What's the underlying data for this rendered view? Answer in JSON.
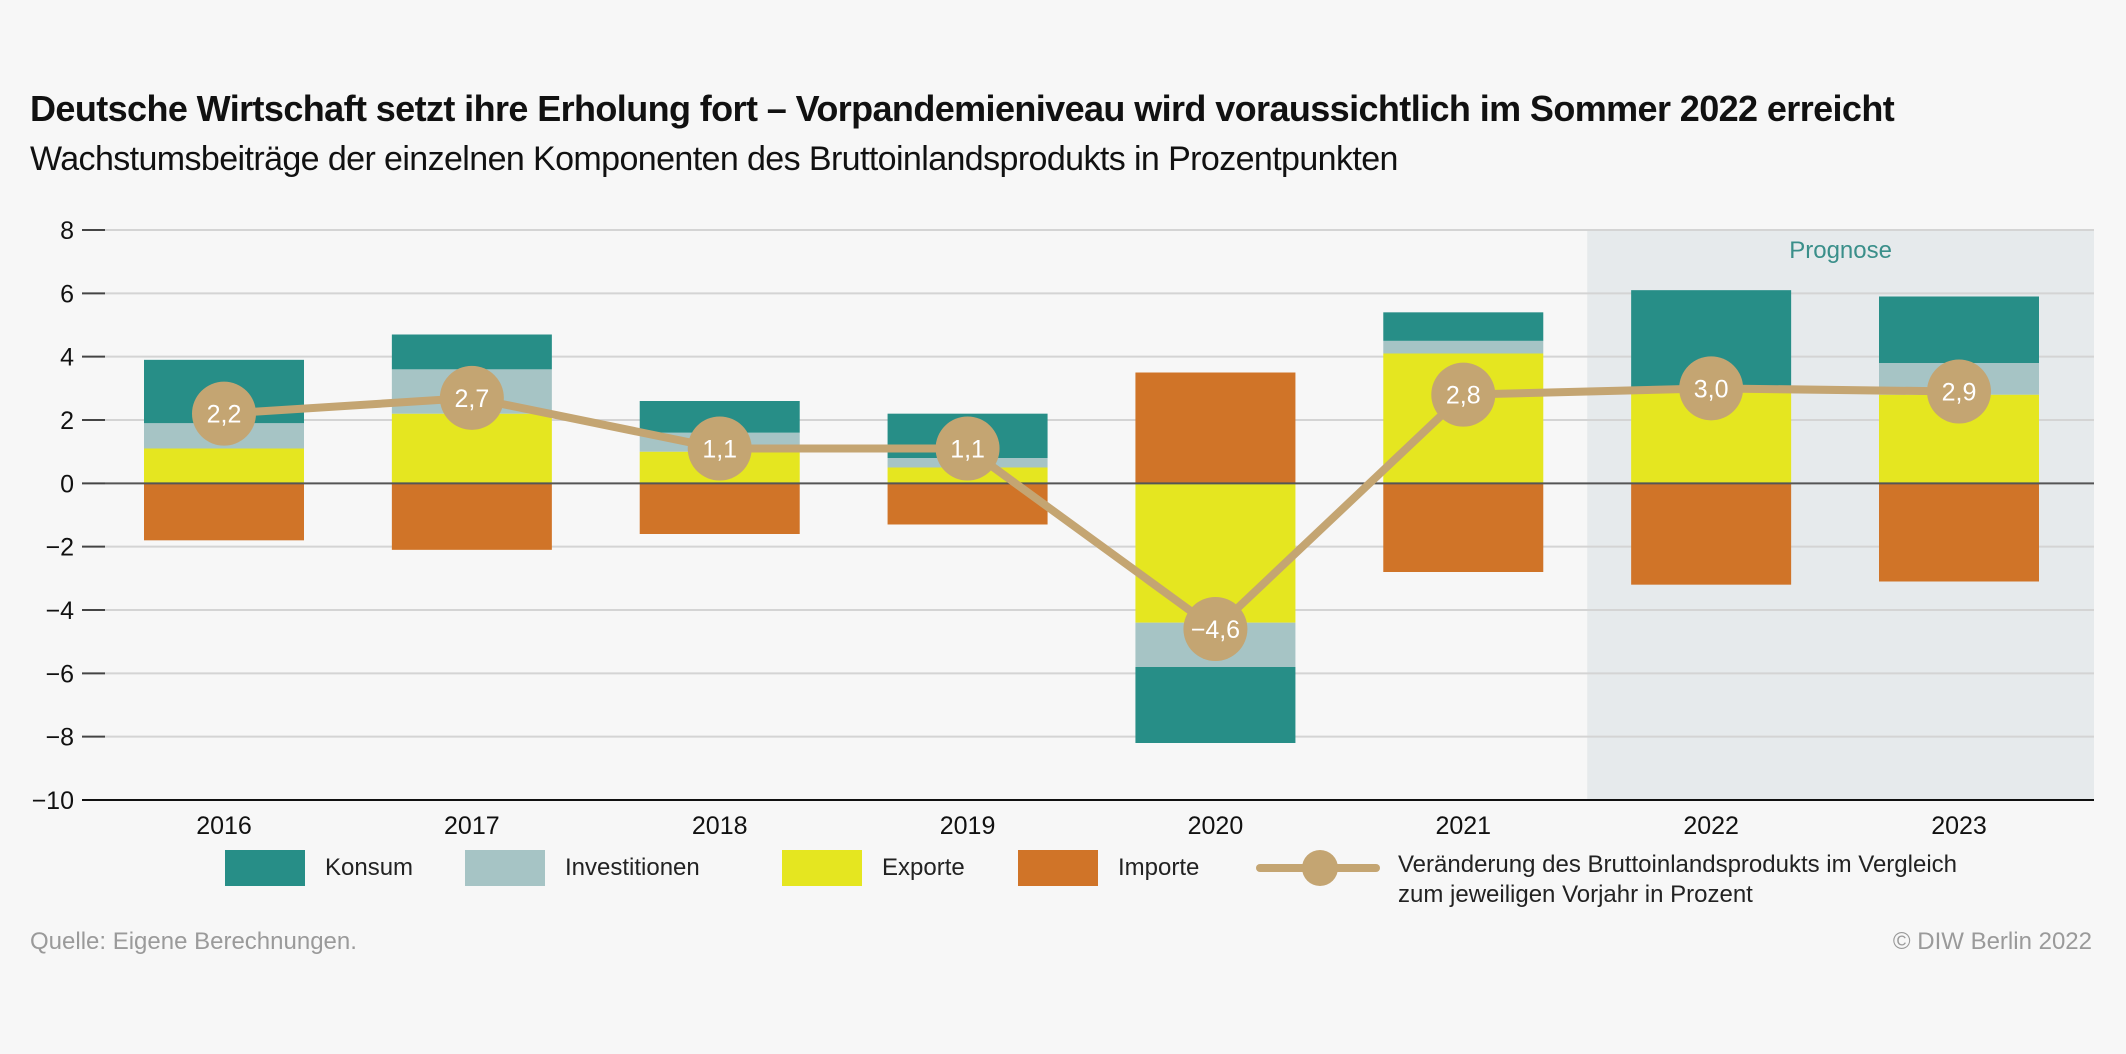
{
  "header": {
    "title": "Deutsche Wirtschaft setzt ihre Erholung fort – Vorpandemieniveau wird voraussichtlich im Sommer 2022 erreicht",
    "subtitle": "Wachstumsbeiträge der einzelnen Komponenten des Bruttoinlandsprodukts in Prozentpunkten"
  },
  "colors": {
    "konsum": "#278e87",
    "investitionen": "#a6c4c5",
    "exporte": "#e5e620",
    "importe": "#d07428",
    "gdp_line": "#c4a572",
    "forecast_bg": "#e6eaec",
    "forecast_label": "#3a8f8a"
  },
  "chart_data": {
    "type": "bar",
    "stacked": true,
    "title": "Deutsche Wirtschaft setzt ihre Erholung fort – Vorpandemieniveau wird voraussichtlich im Sommer 2022 erreicht",
    "subtitle": "Wachstumsbeiträge der einzelnen Komponenten des Bruttoinlandsprodukts in Prozentpunkten",
    "xlabel": "",
    "ylabel": "",
    "categories": [
      "2016",
      "2017",
      "2018",
      "2019",
      "2020",
      "2021",
      "2022",
      "2023"
    ],
    "ylim": [
      -10,
      8
    ],
    "yticks": [
      8,
      6,
      4,
      2,
      0,
      -2,
      -4,
      -6,
      -8,
      -10
    ],
    "ytick_labels": [
      "8",
      "6",
      "4",
      "2",
      "0",
      "−2",
      "−4",
      "−6",
      "−8",
      "−10"
    ],
    "grid": true,
    "forecast": {
      "label": "Prognose",
      "categories": [
        "2022",
        "2023"
      ]
    },
    "series": [
      {
        "name": "Exporte",
        "key": "exporte",
        "values": [
          1.1,
          2.2,
          1.0,
          0.5,
          -4.4,
          4.1,
          3.0,
          2.8
        ]
      },
      {
        "name": "Investitionen",
        "key": "investitionen",
        "values": [
          0.8,
          1.4,
          0.6,
          0.3,
          -1.4,
          0.4,
          0.0,
          1.0
        ]
      },
      {
        "name": "Konsum",
        "key": "konsum",
        "values": [
          2.0,
          1.1,
          1.0,
          1.4,
          -2.4,
          0.9,
          3.1,
          2.1
        ]
      },
      {
        "name": "Importe",
        "key": "importe",
        "values": [
          -1.8,
          -2.1,
          -1.6,
          -1.3,
          3.5,
          -2.8,
          -3.2,
          -3.1
        ]
      }
    ],
    "line": {
      "name": "Veränderung des Bruttoinlandsprodukts im Vergleich zum jeweiligen Vorjahr in Prozent",
      "type": "line",
      "values": [
        2.2,
        2.7,
        1.1,
        1.1,
        -4.6,
        2.8,
        3.0,
        2.9
      ],
      "labels": [
        "2,2",
        "2,7",
        "1,1",
        "1,1",
        "−4,6",
        "2,8",
        "3,0",
        "2,9"
      ]
    },
    "legend_position": "bottom"
  },
  "legend": {
    "konsum": "Konsum",
    "investitionen": "Investitionen",
    "exporte": "Exporte",
    "importe": "Importe",
    "line_line1": "Veränderung des Bruttoinlandsprodukts im Vergleich",
    "line_line2": "zum jeweiligen Vorjahr in Prozent"
  },
  "footer": {
    "source": "Quelle: Eigene Berechnungen.",
    "copyright": "© DIW Berlin 2022"
  }
}
